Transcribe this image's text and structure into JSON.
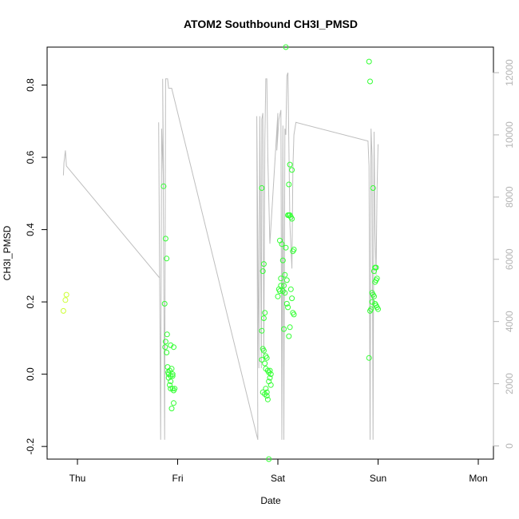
{
  "chart_data": {
    "type": "scatter",
    "title": "ATOM2 Southbound CH3I_PMSD",
    "xlabel": "Date",
    "ylabel": "CH3I_PMSD",
    "x_ticks": [
      "Thu",
      "Fri",
      "Sat",
      "Sun",
      "Mon"
    ],
    "y_ticks": [
      -0.2,
      0.0,
      0.2,
      0.4,
      0.6,
      0.8
    ],
    "y_tick_labels": [
      "-0.2",
      "0.0",
      "0.2",
      "0.4",
      "0.6",
      "0.8"
    ],
    "ylim": [
      -0.235,
      0.905
    ],
    "right_axis": {
      "ticks": [
        0,
        2000,
        4000,
        6000,
        8000,
        10000,
        12000
      ],
      "ylim": [
        0,
        12000
      ],
      "color": "#b4b4b4"
    },
    "grid": false,
    "legend": "none",
    "colors": {
      "thu_points": "#ccff33",
      "points": "#33ff33",
      "line": "#bebebe"
    },
    "series": [
      {
        "mark": "point",
        "color_key": "thu_points",
        "x": [
          -0.14,
          -0.12,
          -0.11
        ],
        "y": [
          0.175,
          0.205,
          0.22
        ]
      },
      {
        "mark": "point",
        "color_key": "points",
        "x": [
          0.86,
          0.88,
          0.89,
          0.87,
          0.895,
          0.88,
          0.875,
          0.9,
          0.91,
          0.905,
          0.93,
          0.92,
          0.95,
          0.94,
          0.96,
          0.92,
          0.93,
          0.96,
          0.95,
          0.97,
          0.96,
          0.94,
          0.93,
          0.89,
          0.91,
          0.93,
          0.95
        ],
        "y": [
          0.52,
          0.375,
          0.32,
          0.195,
          0.11,
          0.09,
          0.075,
          0.02,
          0.0,
          0.005,
          -0.005,
          0.01,
          0.0,
          0.015,
          0.075,
          -0.03,
          -0.04,
          -0.045,
          -0.04,
          -0.04,
          -0.08,
          -0.095,
          -0.02,
          0.06,
          -0.01,
          0.08,
          -0.005
        ]
      },
      {
        "mark": "point",
        "color_key": "points",
        "x": [
          1.84,
          1.86,
          1.85,
          1.87,
          1.84,
          1.86,
          1.85,
          1.88,
          1.89,
          1.87,
          1.88,
          1.9,
          1.91,
          1.92,
          1.93,
          1.92,
          1.91,
          1.89,
          1.85,
          1.87,
          1.84,
          1.88,
          1.9,
          1.93,
          1.89,
          1.86,
          1.91
        ],
        "y": [
          0.515,
          0.305,
          0.285,
          0.17,
          0.12,
          0.155,
          0.07,
          0.05,
          0.045,
          0.03,
          0.015,
          0.01,
          0.005,
          0.01,
          0.0,
          -0.01,
          -0.02,
          -0.05,
          -0.05,
          -0.055,
          0.04,
          -0.04,
          -0.07,
          -0.03,
          -0.06,
          0.065,
          -0.235
        ]
      },
      {
        "mark": "point",
        "color_key": "points",
        "x": [
          2.08,
          2.02,
          2.12,
          2.14,
          2.11,
          2.1,
          2.11,
          2.13,
          2.14,
          2.12,
          2.15,
          2.16,
          2.04,
          2.05,
          2.08,
          2.07,
          2.09,
          2.06,
          2.03,
          2.01,
          2.02,
          2.05,
          2.07,
          2.13,
          2.15,
          2.16,
          2.09,
          2.1,
          2.12,
          2.06,
          2.0,
          2.03,
          2.11,
          2.14
        ],
        "y": [
          0.905,
          0.37,
          0.58,
          0.565,
          0.525,
          0.44,
          0.44,
          0.435,
          0.43,
          0.44,
          0.34,
          0.345,
          0.36,
          0.315,
          0.35,
          0.275,
          0.26,
          0.245,
          0.245,
          0.235,
          0.23,
          0.23,
          0.225,
          0.235,
          0.17,
          0.165,
          0.195,
          0.185,
          0.13,
          0.125,
          0.215,
          0.265,
          0.105,
          0.21
        ]
      },
      {
        "mark": "point",
        "color_key": "points",
        "x": [
          2.91,
          2.92,
          2.95,
          2.97,
          2.98,
          2.99,
          2.96,
          2.97,
          2.98,
          2.95,
          2.96,
          2.94,
          2.93,
          2.92,
          2.91,
          2.99,
          3.0,
          2.98,
          2.97,
          2.94
        ],
        "y": [
          0.865,
          0.81,
          0.515,
          0.295,
          0.295,
          0.265,
          0.285,
          0.255,
          0.26,
          0.22,
          0.215,
          0.225,
          0.18,
          0.175,
          0.045,
          0.185,
          0.18,
          0.19,
          0.195,
          0.2
        ]
      },
      {
        "mark": "line",
        "axis": "right",
        "color_key": "line",
        "x": [
          -0.14,
          -0.135,
          -0.12,
          -0.11,
          0.82,
          0.81,
          0.83,
          0.84,
          0.86,
          0.85,
          0.87,
          0.88,
          0.89,
          0.9,
          0.91,
          0.92,
          0.93,
          0.935,
          0.94,
          1.8,
          1.79,
          1.81,
          1.82,
          1.835,
          1.84,
          1.85,
          1.86,
          1.87,
          1.88,
          1.89,
          1.9,
          1.92,
          2.0,
          1.99,
          2.01,
          2.03,
          2.04,
          2.05,
          2.06,
          2.07,
          2.08,
          2.09,
          2.1,
          2.12,
          2.14,
          2.15,
          2.16,
          2.18,
          2.9,
          2.91,
          2.92,
          2.93,
          2.94,
          2.95,
          2.96,
          2.97,
          2.98,
          2.99,
          3.0
        ],
        "y": [
          8700,
          9100,
          9500,
          9000,
          5400,
          10400,
          200,
          10200,
          8300,
          11800,
          200,
          11800,
          11800,
          11800,
          11500,
          11500,
          11500,
          11500,
          11500,
          200,
          10600,
          2500,
          10600,
          2500,
          10500,
          10700,
          2800,
          9800,
          11800,
          11800,
          9300,
          6500,
          10700,
          9500,
          10500,
          10800,
          200,
          10300,
          200,
          10200,
          10000,
          11900,
          12000,
          7100,
          5700,
          8900,
          10000,
          10400,
          9800,
          9000,
          200,
          10200,
          9300,
          200,
          10100,
          6900,
          5500,
          8200,
          9700
        ]
      }
    ]
  }
}
